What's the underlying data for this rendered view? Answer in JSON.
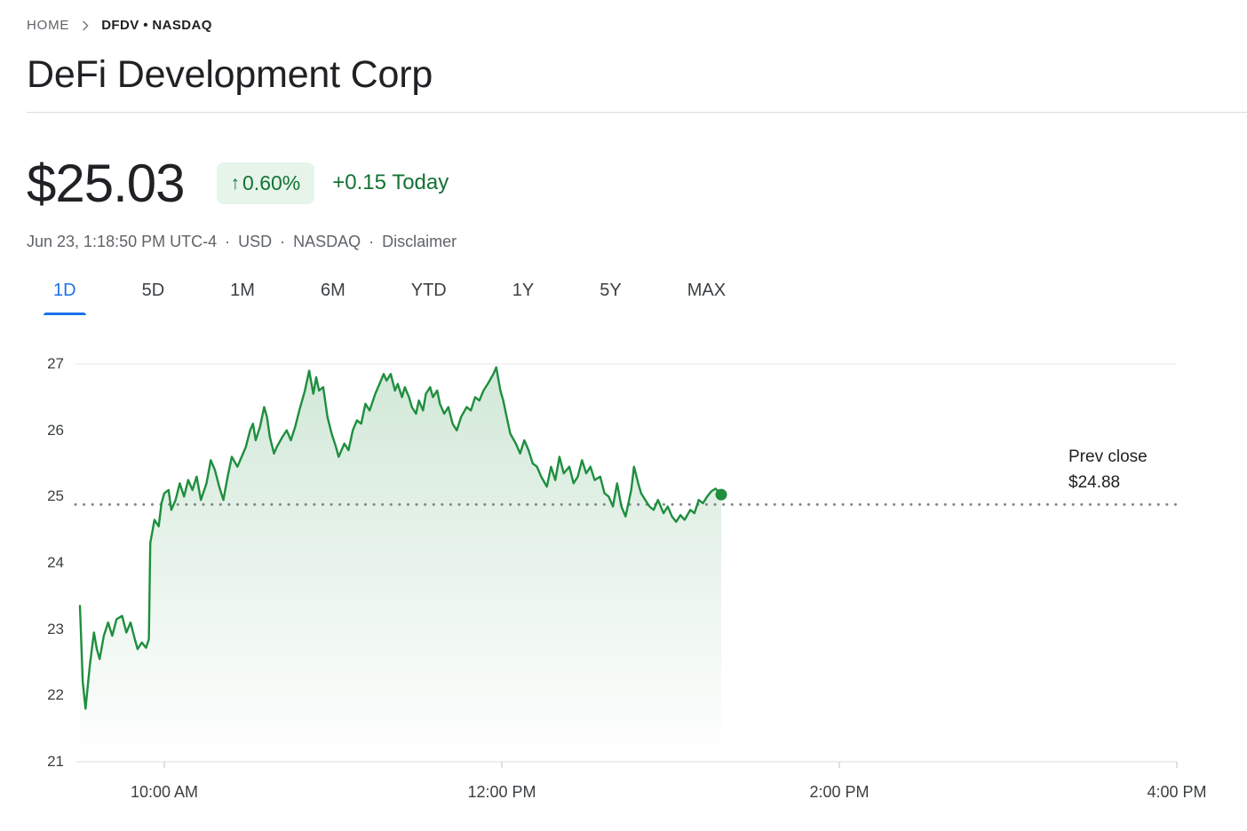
{
  "breadcrumb": {
    "home": "HOME",
    "ticker": "DFDV • NASDAQ"
  },
  "header": {
    "title": "DeFi Development Corp"
  },
  "quote": {
    "price": "$25.03",
    "arrow": "↑",
    "change_percent": "0.60%",
    "change_abs": "+0.15 Today",
    "meta_timestamp": "Jun 23, 1:18:50 PM UTC-4",
    "separator": "·",
    "currency": "USD",
    "exchange": "NASDAQ",
    "disclaimer": "Disclaimer"
  },
  "tabs": [
    {
      "label": "1D",
      "active": true
    },
    {
      "label": "5D",
      "active": false
    },
    {
      "label": "1M",
      "active": false
    },
    {
      "label": "6M",
      "active": false
    },
    {
      "label": "YTD",
      "active": false
    },
    {
      "label": "1Y",
      "active": false
    },
    {
      "label": "5Y",
      "active": false
    },
    {
      "label": "MAX",
      "active": false
    }
  ],
  "colors": {
    "accent_blue": "#1a73e8",
    "positive_green": "#137333",
    "badge_bg": "#e6f4ea",
    "line_green": "#1e8e3e",
    "dotted_gray": "#80868b"
  },
  "chart_data": {
    "type": "line",
    "title": "DeFi Development Corp (DFDV) 1D intraday price",
    "x_axis": {
      "note": "x values are minutes since 9:30 AM market open",
      "tick_labels": [
        "10:00 AM",
        "12:00 PM",
        "2:00 PM",
        "4:00 PM"
      ],
      "tick_minutes": [
        30,
        150,
        270,
        390
      ],
      "session_start": "9:30 AM",
      "session_end": "4:00 PM"
    },
    "y_axis": {
      "tick_labels": [
        "27",
        "26",
        "25",
        "24",
        "23",
        "22",
        "21"
      ],
      "ticks": [
        27,
        26,
        25,
        24,
        23,
        22,
        21
      ],
      "range": [
        21,
        27
      ]
    },
    "prev_close": {
      "label": "Prev close",
      "display": "$24.88",
      "value": 24.88
    },
    "line_color": "#1e8e3e",
    "last_point": {
      "time": "1:18 PM",
      "price": 25.03
    },
    "series": [
      {
        "name": "DFDV",
        "points": [
          [
            0,
            23.35
          ],
          [
            1,
            22.2
          ],
          [
            2,
            21.8
          ],
          [
            3.5,
            22.45
          ],
          [
            5,
            22.95
          ],
          [
            6,
            22.7
          ],
          [
            7,
            22.55
          ],
          [
            8.5,
            22.9
          ],
          [
            10,
            23.1
          ],
          [
            11.5,
            22.9
          ],
          [
            13,
            23.15
          ],
          [
            15,
            23.2
          ],
          [
            16.5,
            22.95
          ],
          [
            18,
            23.1
          ],
          [
            19.5,
            22.85
          ],
          [
            20.5,
            22.7
          ],
          [
            22,
            22.8
          ],
          [
            23.5,
            22.72
          ],
          [
            24.5,
            22.85
          ],
          [
            25,
            24.3
          ],
          [
            26.5,
            24.65
          ],
          [
            28,
            24.55
          ],
          [
            29,
            24.9
          ],
          [
            30,
            25.05
          ],
          [
            31.5,
            25.1
          ],
          [
            32.5,
            24.8
          ],
          [
            34,
            24.95
          ],
          [
            35.5,
            25.2
          ],
          [
            37,
            25.0
          ],
          [
            38.5,
            25.25
          ],
          [
            40,
            25.1
          ],
          [
            41.5,
            25.3
          ],
          [
            43,
            24.95
          ],
          [
            45,
            25.2
          ],
          [
            46.5,
            25.55
          ],
          [
            48,
            25.4
          ],
          [
            49.5,
            25.15
          ],
          [
            51,
            24.95
          ],
          [
            52.5,
            25.3
          ],
          [
            54,
            25.6
          ],
          [
            56,
            25.45
          ],
          [
            57.5,
            25.6
          ],
          [
            59,
            25.75
          ],
          [
            60.5,
            26.0
          ],
          [
            61.5,
            26.1
          ],
          [
            62.5,
            25.85
          ],
          [
            64,
            26.05
          ],
          [
            65.5,
            26.35
          ],
          [
            66.5,
            26.2
          ],
          [
            67.5,
            25.9
          ],
          [
            69,
            25.65
          ],
          [
            70,
            25.75
          ],
          [
            72,
            25.9
          ],
          [
            73.5,
            26.0
          ],
          [
            75,
            25.85
          ],
          [
            76.5,
            26.05
          ],
          [
            78,
            26.3
          ],
          [
            80,
            26.6
          ],
          [
            81.5,
            26.9
          ],
          [
            83,
            26.55
          ],
          [
            84,
            26.8
          ],
          [
            85,
            26.6
          ],
          [
            86.5,
            26.65
          ],
          [
            88,
            26.2
          ],
          [
            89.5,
            25.95
          ],
          [
            91,
            25.75
          ],
          [
            92,
            25.6
          ],
          [
            94,
            25.8
          ],
          [
            95.5,
            25.7
          ],
          [
            97,
            26.0
          ],
          [
            98.5,
            26.15
          ],
          [
            100,
            26.1
          ],
          [
            101.5,
            26.4
          ],
          [
            103,
            26.3
          ],
          [
            105,
            26.55
          ],
          [
            106.5,
            26.7
          ],
          [
            108,
            26.85
          ],
          [
            109,
            26.75
          ],
          [
            110.5,
            26.85
          ],
          [
            112,
            26.6
          ],
          [
            113,
            26.7
          ],
          [
            114.5,
            26.5
          ],
          [
            115.5,
            26.65
          ],
          [
            117,
            26.5
          ],
          [
            118,
            26.35
          ],
          [
            119.5,
            26.25
          ],
          [
            120.5,
            26.45
          ],
          [
            122,
            26.3
          ],
          [
            123,
            26.55
          ],
          [
            124.5,
            26.65
          ],
          [
            125.5,
            26.5
          ],
          [
            127,
            26.6
          ],
          [
            128,
            26.4
          ],
          [
            129.5,
            26.25
          ],
          [
            131,
            26.35
          ],
          [
            132.5,
            26.1
          ],
          [
            134,
            26.0
          ],
          [
            135.5,
            26.2
          ],
          [
            137.5,
            26.35
          ],
          [
            139,
            26.3
          ],
          [
            140.5,
            26.5
          ],
          [
            142,
            26.45
          ],
          [
            143.5,
            26.6
          ],
          [
            145,
            26.7
          ],
          [
            147,
            26.85
          ],
          [
            148,
            26.95
          ],
          [
            149.5,
            26.6
          ],
          [
            150.5,
            26.45
          ],
          [
            152,
            26.15
          ],
          [
            153,
            25.95
          ],
          [
            155,
            25.8
          ],
          [
            156.5,
            25.65
          ],
          [
            158,
            25.85
          ],
          [
            159.5,
            25.7
          ],
          [
            161,
            25.5
          ],
          [
            162.5,
            25.45
          ],
          [
            164,
            25.3
          ],
          [
            166,
            25.15
          ],
          [
            167.5,
            25.45
          ],
          [
            169,
            25.25
          ],
          [
            170.5,
            25.6
          ],
          [
            172,
            25.35
          ],
          [
            174,
            25.45
          ],
          [
            175.5,
            25.2
          ],
          [
            177,
            25.3
          ],
          [
            178.5,
            25.55
          ],
          [
            180,
            25.35
          ],
          [
            181.5,
            25.45
          ],
          [
            183,
            25.25
          ],
          [
            185,
            25.3
          ],
          [
            186.5,
            25.05
          ],
          [
            188,
            25.0
          ],
          [
            189.5,
            24.85
          ],
          [
            191,
            25.2
          ],
          [
            192.5,
            24.85
          ],
          [
            194,
            24.7
          ],
          [
            196,
            25.1
          ],
          [
            197,
            25.45
          ],
          [
            198.5,
            25.2
          ],
          [
            199.5,
            25.05
          ],
          [
            201,
            24.95
          ],
          [
            202.5,
            24.85
          ],
          [
            204,
            24.8
          ],
          [
            205.5,
            24.95
          ],
          [
            207.5,
            24.75
          ],
          [
            209,
            24.85
          ],
          [
            210.5,
            24.7
          ],
          [
            212,
            24.62
          ],
          [
            213.5,
            24.72
          ],
          [
            215,
            24.65
          ],
          [
            217,
            24.8
          ],
          [
            218.5,
            24.75
          ],
          [
            220,
            24.95
          ],
          [
            221.5,
            24.9
          ],
          [
            223,
            25.0
          ],
          [
            224.5,
            25.08
          ],
          [
            226,
            25.12
          ],
          [
            228,
            25.03
          ]
        ]
      }
    ]
  }
}
